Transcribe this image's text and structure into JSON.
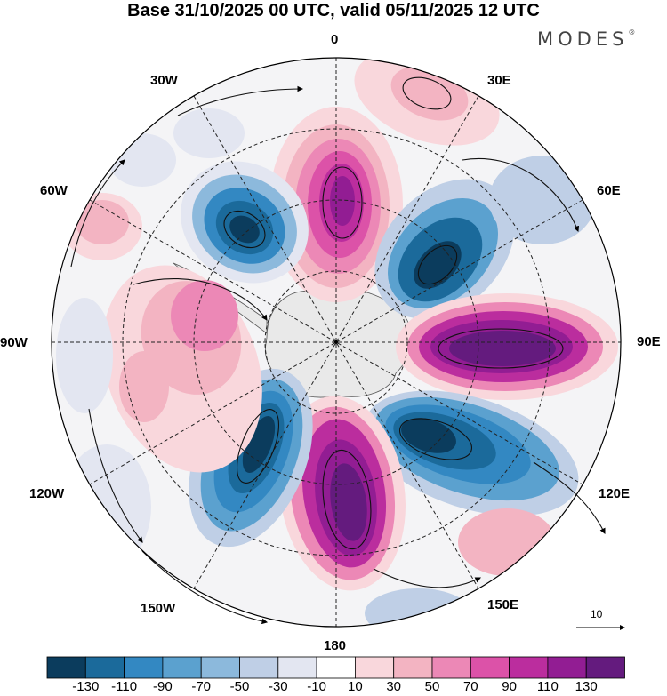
{
  "title": "Base 31/10/2025 00 UTC, valid 05/11/2025 12 UTC",
  "brand": {
    "name": "MODES",
    "mark": "®"
  },
  "longitude_labels": {
    "lon_0": "0",
    "lon_30e": "30E",
    "lon_60e": "60E",
    "lon_90e": "90E",
    "lon_120e": "120E",
    "lon_150e": "150E",
    "lon_180": "180",
    "lon_150w": "150W",
    "lon_120w": "120W",
    "lon_90w": "90W",
    "lon_60w": "60W",
    "lon_30w": "30W"
  },
  "reference_vector": {
    "label": "10"
  },
  "colorbar": {
    "colors": [
      "#0b3c5d",
      "#1b6a9b",
      "#3388c2",
      "#5ba1cf",
      "#8cb9dc",
      "#bfcfe6",
      "#e3e6f1",
      "#ffffff",
      "#f9d7dc",
      "#f3b4c2",
      "#ec88b6",
      "#dc52a8",
      "#bb2d9e",
      "#921d93",
      "#641b7e"
    ],
    "tick_labels": [
      "-130",
      "-110",
      "-90",
      "-70",
      "-50",
      "-30",
      "-10",
      "10",
      "30",
      "50",
      "70",
      "90",
      "110",
      "130"
    ]
  },
  "field_colors": {
    "land": "#e9e9e9",
    "neutral": "#f4f4f6",
    "outline": "#000000"
  }
}
